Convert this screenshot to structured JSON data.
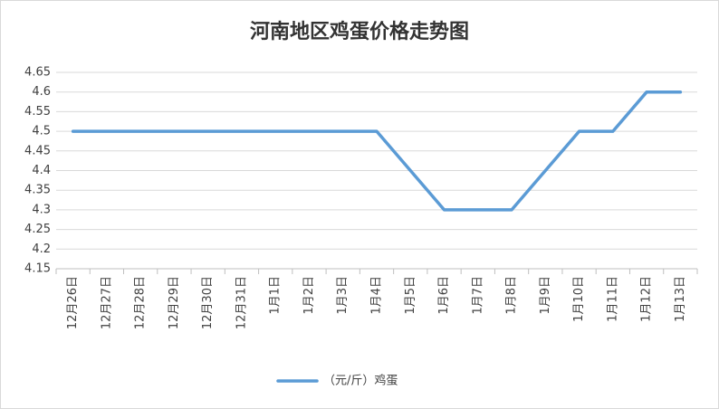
{
  "chart_data": {
    "type": "line",
    "title": "河南地区鸡蛋价格走势图",
    "categories": [
      "12月26日",
      "12月27日",
      "12月28日",
      "12月29日",
      "12月30日",
      "12月31日",
      "1月1日",
      "1月2日",
      "1月3日",
      "1月4日",
      "1月5日",
      "1月6日",
      "1月7日",
      "1月8日",
      "1月9日",
      "1月10日",
      "1月11日",
      "1月12日",
      "1月13日"
    ],
    "series": [
      {
        "name": "（元/斤）鸡蛋",
        "color": "#5b9bd5",
        "values": [
          4.5,
          4.5,
          4.5,
          4.5,
          4.5,
          4.5,
          4.5,
          4.5,
          4.5,
          4.5,
          4.4,
          4.3,
          4.3,
          4.3,
          4.4,
          4.5,
          4.5,
          4.6,
          4.6
        ]
      }
    ],
    "ylim": [
      4.15,
      4.65
    ],
    "yticks": [
      4.15,
      4.2,
      4.25,
      4.3,
      4.35,
      4.4,
      4.45,
      4.5,
      4.55,
      4.6,
      4.65
    ],
    "grid": true,
    "legend": "bottom"
  }
}
